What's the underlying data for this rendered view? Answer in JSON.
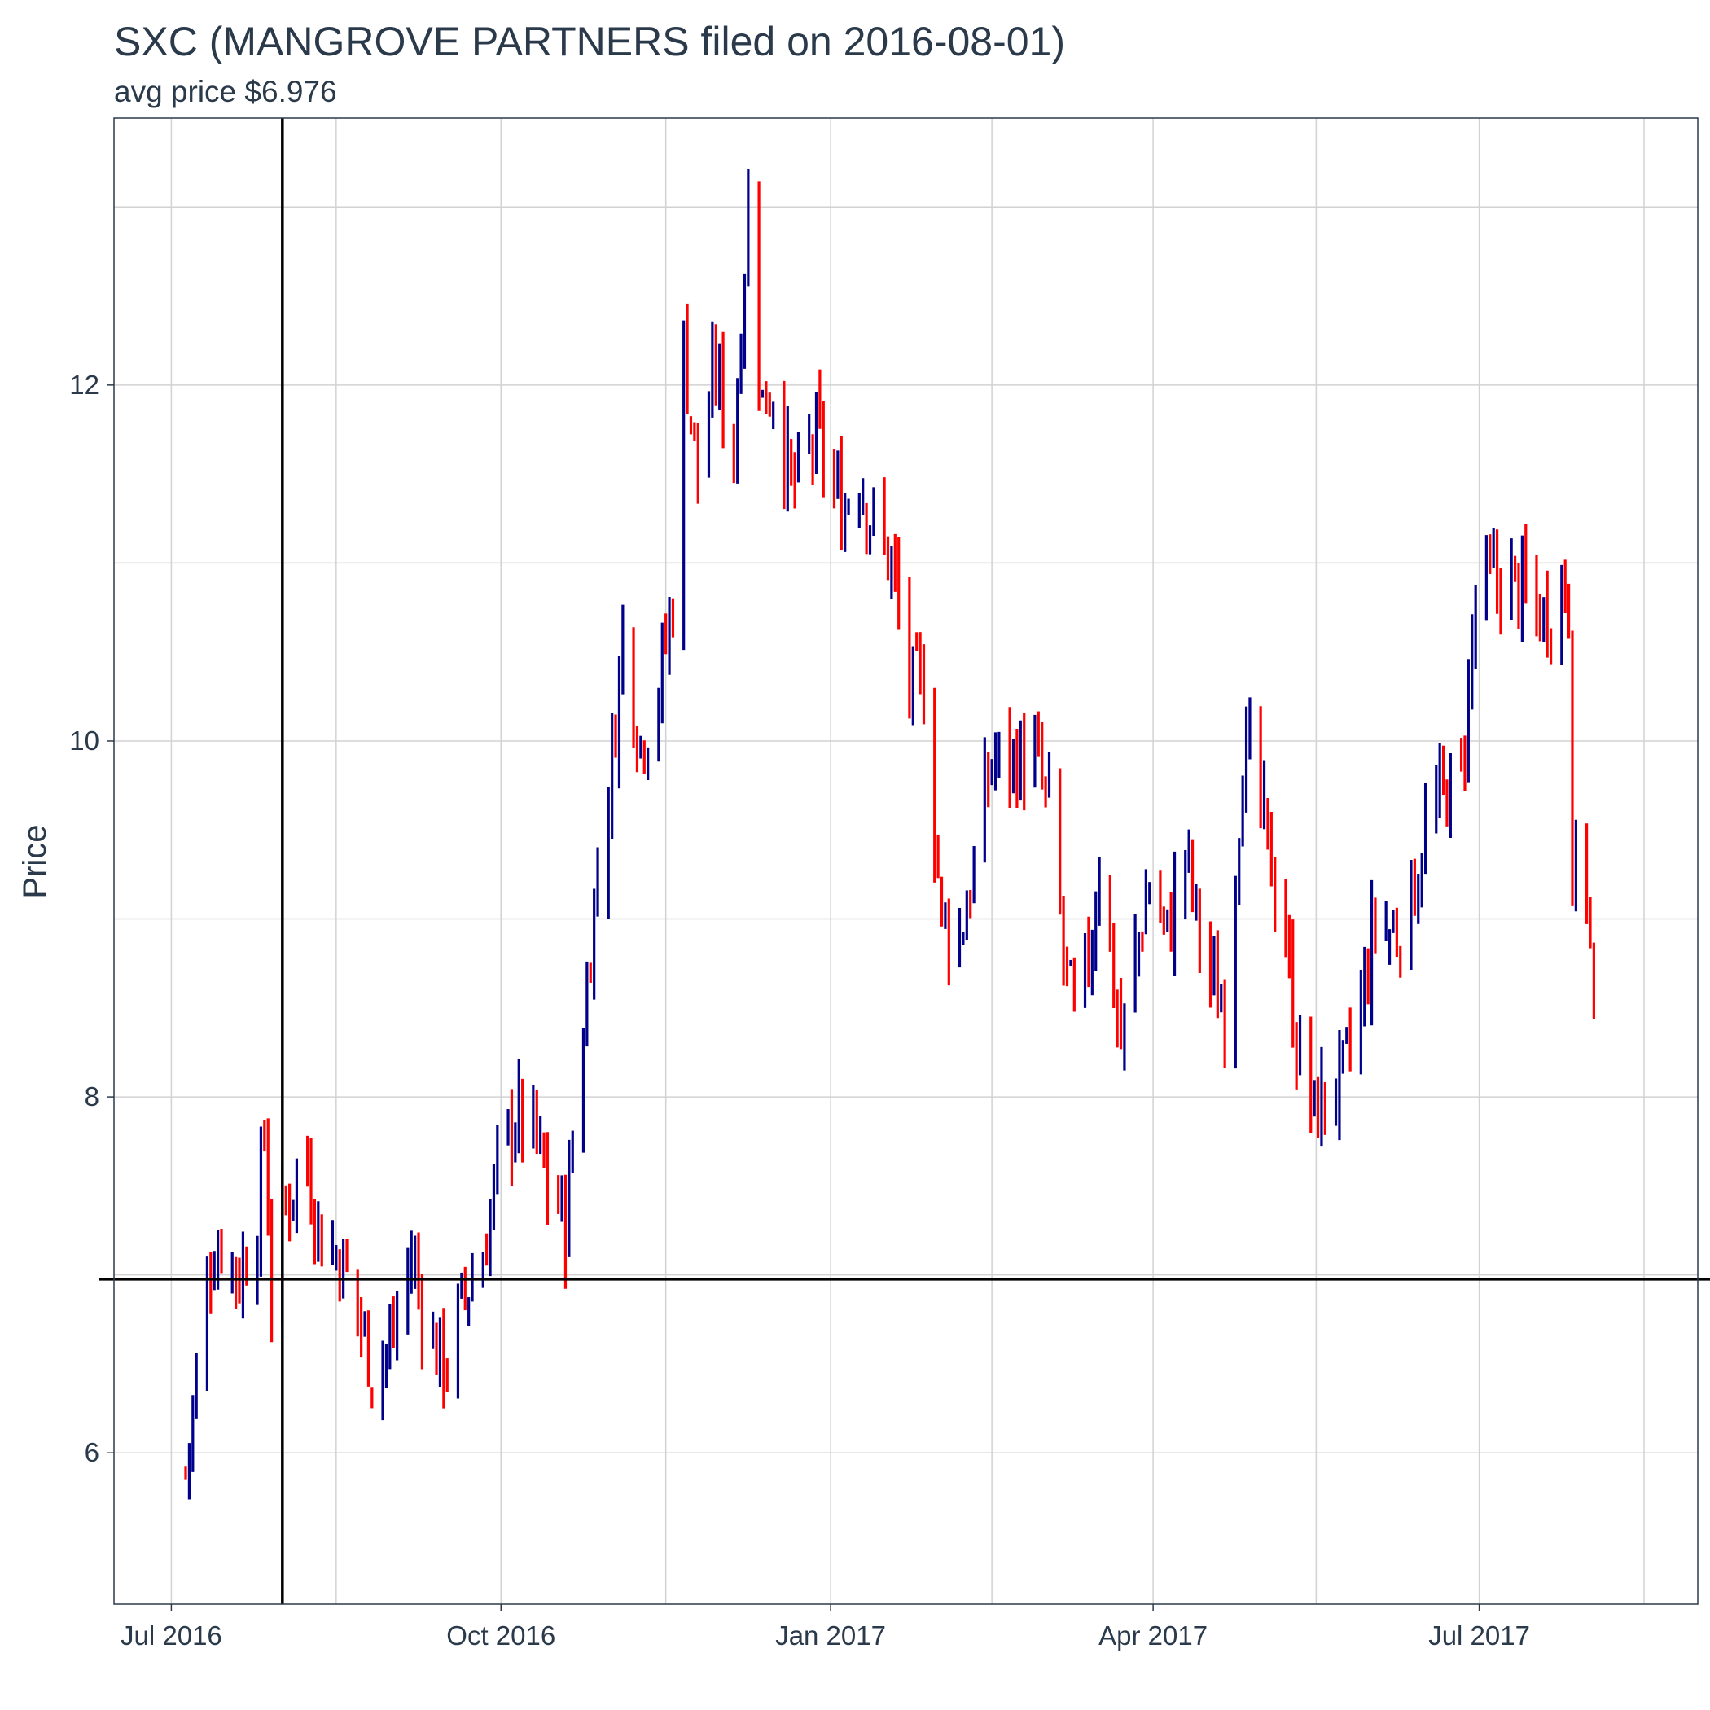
{
  "chart_data": {
    "type": "ohlc",
    "title": "SXC (MANGROVE PARTNERS filed on 2016-08-01)",
    "subtitle": "avg price $6.976",
    "ylabel": "Price",
    "xlabel": "",
    "x_ticks": [
      {
        "date": "2016-07-01",
        "label": "Jul 2016"
      },
      {
        "date": "2016-10-01",
        "label": "Oct 2016"
      },
      {
        "date": "2017-01-01",
        "label": "Jan 2017"
      },
      {
        "date": "2017-04-01",
        "label": "Apr 2017"
      },
      {
        "date": "2017-07-01",
        "label": "Jul 2017"
      }
    ],
    "y_ticks": [
      6,
      8,
      10,
      12
    ],
    "xlim": [
      "2016-06-15",
      "2017-08-31"
    ],
    "ylim": [
      5.15,
      13.5
    ],
    "grid": true,
    "reference_lines": {
      "vline_date": "2016-08-01",
      "hline_value": 6.976
    },
    "colors": {
      "up": "#00008B",
      "down": "#FF0000",
      "reference": "#000000",
      "grid": "#d2d2d2",
      "text": "#2b3a4a"
    },
    "anchor_closes": [
      [
        "2016-07-05",
        5.9
      ],
      [
        "2016-07-08",
        6.4
      ],
      [
        "2016-07-12",
        7.1
      ],
      [
        "2016-07-15",
        7.2
      ],
      [
        "2016-07-20",
        7.0
      ],
      [
        "2016-07-25",
        7.3
      ],
      [
        "2016-07-27",
        7.8
      ],
      [
        "2016-07-29",
        6.9
      ],
      [
        "2016-08-01",
        7.3
      ],
      [
        "2016-08-05",
        7.6
      ],
      [
        "2016-08-08",
        7.6
      ],
      [
        "2016-08-12",
        7.2
      ],
      [
        "2016-08-17",
        7.1
      ],
      [
        "2016-08-22",
        6.8
      ],
      [
        "2016-08-26",
        6.5
      ],
      [
        "2016-08-31",
        6.6
      ],
      [
        "2016-09-06",
        7.1
      ],
      [
        "2016-09-12",
        6.6
      ],
      [
        "2016-09-16",
        6.5
      ],
      [
        "2016-09-21",
        6.9
      ],
      [
        "2016-09-26",
        7.1
      ],
      [
        "2016-09-30",
        7.6
      ],
      [
        "2016-10-05",
        7.9
      ],
      [
        "2016-10-10",
        7.8
      ],
      [
        "2016-10-14",
        7.5
      ],
      [
        "2016-10-19",
        7.3
      ],
      [
        "2016-10-24",
        8.4
      ],
      [
        "2016-10-27",
        9.1
      ],
      [
        "2016-11-01",
        9.9
      ],
      [
        "2016-11-04",
        10.6
      ],
      [
        "2016-11-09",
        10.0
      ],
      [
        "2016-11-14",
        10.3
      ],
      [
        "2016-11-18",
        10.8
      ],
      [
        "2016-11-21",
        12.2
      ],
      [
        "2016-11-25",
        11.5
      ],
      [
        "2016-11-30",
        12.1
      ],
      [
        "2016-12-05",
        11.6
      ],
      [
        "2016-12-07",
        12.4
      ],
      [
        "2016-12-09",
        13.0
      ],
      [
        "2016-12-13",
        11.9
      ],
      [
        "2016-12-16",
        12.0
      ],
      [
        "2016-12-21",
        11.4
      ],
      [
        "2016-12-28",
        11.7
      ],
      [
        "2017-01-04",
        11.3
      ],
      [
        "2017-01-09",
        11.5
      ],
      [
        "2017-01-13",
        11.2
      ],
      [
        "2017-01-18",
        11.0
      ],
      [
        "2017-01-23",
        10.3
      ],
      [
        "2017-01-27",
        10.3
      ],
      [
        "2017-02-01",
        9.0
      ],
      [
        "2017-02-06",
        8.9
      ],
      [
        "2017-02-10",
        9.3
      ],
      [
        "2017-02-15",
        9.9
      ],
      [
        "2017-02-21",
        9.9
      ],
      [
        "2017-02-27",
        9.9
      ],
      [
        "2017-03-03",
        9.6
      ],
      [
        "2017-03-07",
        8.8
      ],
      [
        "2017-03-10",
        8.4
      ],
      [
        "2017-03-15",
        8.9
      ],
      [
        "2017-03-17",
        9.4
      ],
      [
        "2017-03-20",
        8.8
      ],
      [
        "2017-03-23",
        8.3
      ],
      [
        "2017-03-28",
        8.9
      ],
      [
        "2017-03-31",
        9.2
      ],
      [
        "2017-04-05",
        8.9
      ],
      [
        "2017-04-10",
        9.4
      ],
      [
        "2017-04-13",
        9.0
      ],
      [
        "2017-04-18",
        8.6
      ],
      [
        "2017-04-21",
        8.5
      ],
      [
        "2017-04-26",
        9.9
      ],
      [
        "2017-04-28",
        9.9
      ],
      [
        "2017-05-03",
        9.4
      ],
      [
        "2017-05-08",
        8.9
      ],
      [
        "2017-05-11",
        8.3
      ],
      [
        "2017-05-16",
        7.9
      ],
      [
        "2017-05-19",
        8.0
      ],
      [
        "2017-05-24",
        8.1
      ],
      [
        "2017-05-30",
        8.6
      ],
      [
        "2017-06-02",
        9.0
      ],
      [
        "2017-06-07",
        8.9
      ],
      [
        "2017-06-12",
        9.1
      ],
      [
        "2017-06-16",
        9.5
      ],
      [
        "2017-06-21",
        9.7
      ],
      [
        "2017-06-26",
        9.8
      ],
      [
        "2017-06-30",
        10.8
      ],
      [
        "2017-07-05",
        10.9
      ],
      [
        "2017-07-10",
        10.9
      ],
      [
        "2017-07-14",
        10.8
      ],
      [
        "2017-07-19",
        10.7
      ],
      [
        "2017-07-24",
        10.9
      ],
      [
        "2017-07-26",
        10.8
      ],
      [
        "2017-07-27",
        9.3
      ],
      [
        "2017-07-31",
        9.2
      ],
      [
        "2017-08-02",
        8.5
      ]
    ]
  }
}
